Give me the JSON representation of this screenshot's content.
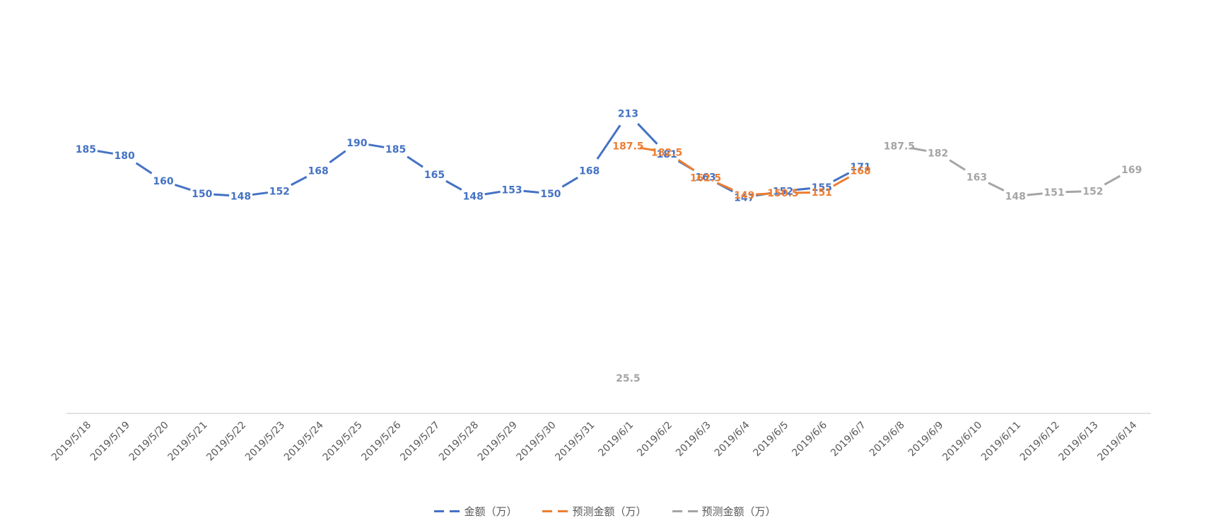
{
  "chart_data": {
    "type": "line",
    "title": "",
    "xlabel": "",
    "ylabel": "",
    "grid": false,
    "legend_position": "bottom",
    "categories": [
      "2019/5/18",
      "2019/5/19",
      "2019/5/20",
      "2019/5/21",
      "2019/5/22",
      "2019/5/23",
      "2019/5/24",
      "2019/5/25",
      "2019/5/26",
      "2019/5/27",
      "2019/5/28",
      "2019/5/29",
      "2019/5/30",
      "2019/5/31",
      "2019/6/1",
      "2019/6/2",
      "2019/6/3",
      "2019/6/4",
      "2019/6/5",
      "2019/6/6",
      "2019/6/7",
      "2019/6/8",
      "2019/6/9",
      "2019/6/10",
      "2019/6/11",
      "2019/6/12",
      "2019/6/13",
      "2019/6/14"
    ],
    "series": [
      {
        "name": "金额（万）",
        "color": "#4472C4",
        "values": [
          185,
          180,
          160,
          150,
          148,
          152,
          168,
          190,
          185,
          165,
          148,
          153,
          150,
          168,
          213,
          181,
          163,
          147,
          152,
          155,
          171,
          null,
          null,
          null,
          null,
          null,
          null,
          null
        ]
      },
      {
        "name": "预测金额（万）",
        "color": "#ED7D31",
        "values": [
          null,
          null,
          null,
          null,
          null,
          null,
          null,
          null,
          null,
          null,
          null,
          null,
          null,
          null,
          187.5,
          182.5,
          162.5,
          149,
          150.5,
          151,
          168,
          null,
          null,
          null,
          null,
          null,
          null,
          null
        ]
      },
      {
        "name": "预测金额（万）",
        "color": "#A5A5A5",
        "values": [
          null,
          null,
          null,
          null,
          null,
          null,
          null,
          null,
          null,
          null,
          null,
          null,
          null,
          null,
          25.5,
          null,
          null,
          null,
          null,
          null,
          null,
          187.5,
          182,
          163,
          148,
          151,
          152,
          169
        ]
      }
    ]
  },
  "legend": {
    "items": [
      {
        "label": "金额（万）",
        "color": "#4472C4"
      },
      {
        "label": "预测金额（万）",
        "color": "#ED7D31"
      },
      {
        "label": "预测金额（万）",
        "color": "#A5A5A5"
      }
    ]
  }
}
